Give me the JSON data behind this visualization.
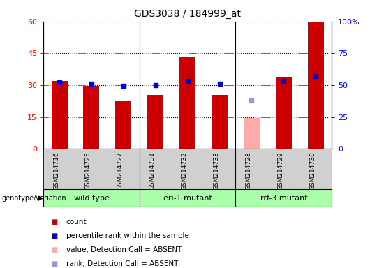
{
  "title": "GDS3038 / 184999_at",
  "samples": [
    "GSM214716",
    "GSM214725",
    "GSM214727",
    "GSM214731",
    "GSM214732",
    "GSM214733",
    "GSM214728",
    "GSM214729",
    "GSM214730"
  ],
  "count_values": [
    32.0,
    29.5,
    22.5,
    25.5,
    43.5,
    25.5,
    null,
    33.5,
    59.5
  ],
  "rank_values": [
    52.0,
    51.0,
    49.5,
    50.0,
    53.0,
    51.0,
    null,
    53.0,
    57.0
  ],
  "absent_count": [
    null,
    null,
    null,
    null,
    null,
    null,
    14.5,
    null,
    null
  ],
  "absent_rank": [
    null,
    null,
    null,
    null,
    null,
    null,
    38.0,
    null,
    null
  ],
  "is_absent": [
    false,
    false,
    false,
    false,
    false,
    false,
    true,
    false,
    false
  ],
  "genotype_groups": [
    {
      "label": "wild type",
      "start": 0,
      "end": 3
    },
    {
      "label": "eri-1 mutant",
      "start": 3,
      "end": 6
    },
    {
      "label": "rrf-3 mutant",
      "start": 6,
      "end": 9
    }
  ],
  "ylim_left": [
    0,
    60
  ],
  "ylim_right": [
    0,
    100
  ],
  "yticks_left": [
    0,
    15,
    30,
    45,
    60
  ],
  "yticks_right": [
    0,
    25,
    50,
    75,
    100
  ],
  "yticklabels_right": [
    "0",
    "25",
    "50",
    "75",
    "100%"
  ],
  "bar_color": "#cc0000",
  "absent_bar_color": "#ffaaaa",
  "rank_color": "#0000cc",
  "absent_rank_color": "#9999cc",
  "grid_color": "black",
  "sample_bg_color": "#d0d0d0",
  "group_bg_color": "#aaffaa",
  "plot_bg": "white",
  "bar_width": 0.5,
  "rank_marker_size": 4,
  "legend_items": [
    {
      "color": "#cc0000",
      "label": "count"
    },
    {
      "color": "#0000cc",
      "label": "percentile rank within the sample"
    },
    {
      "color": "#ffaaaa",
      "label": "value, Detection Call = ABSENT"
    },
    {
      "color": "#9999cc",
      "label": "rank, Detection Call = ABSENT"
    }
  ]
}
